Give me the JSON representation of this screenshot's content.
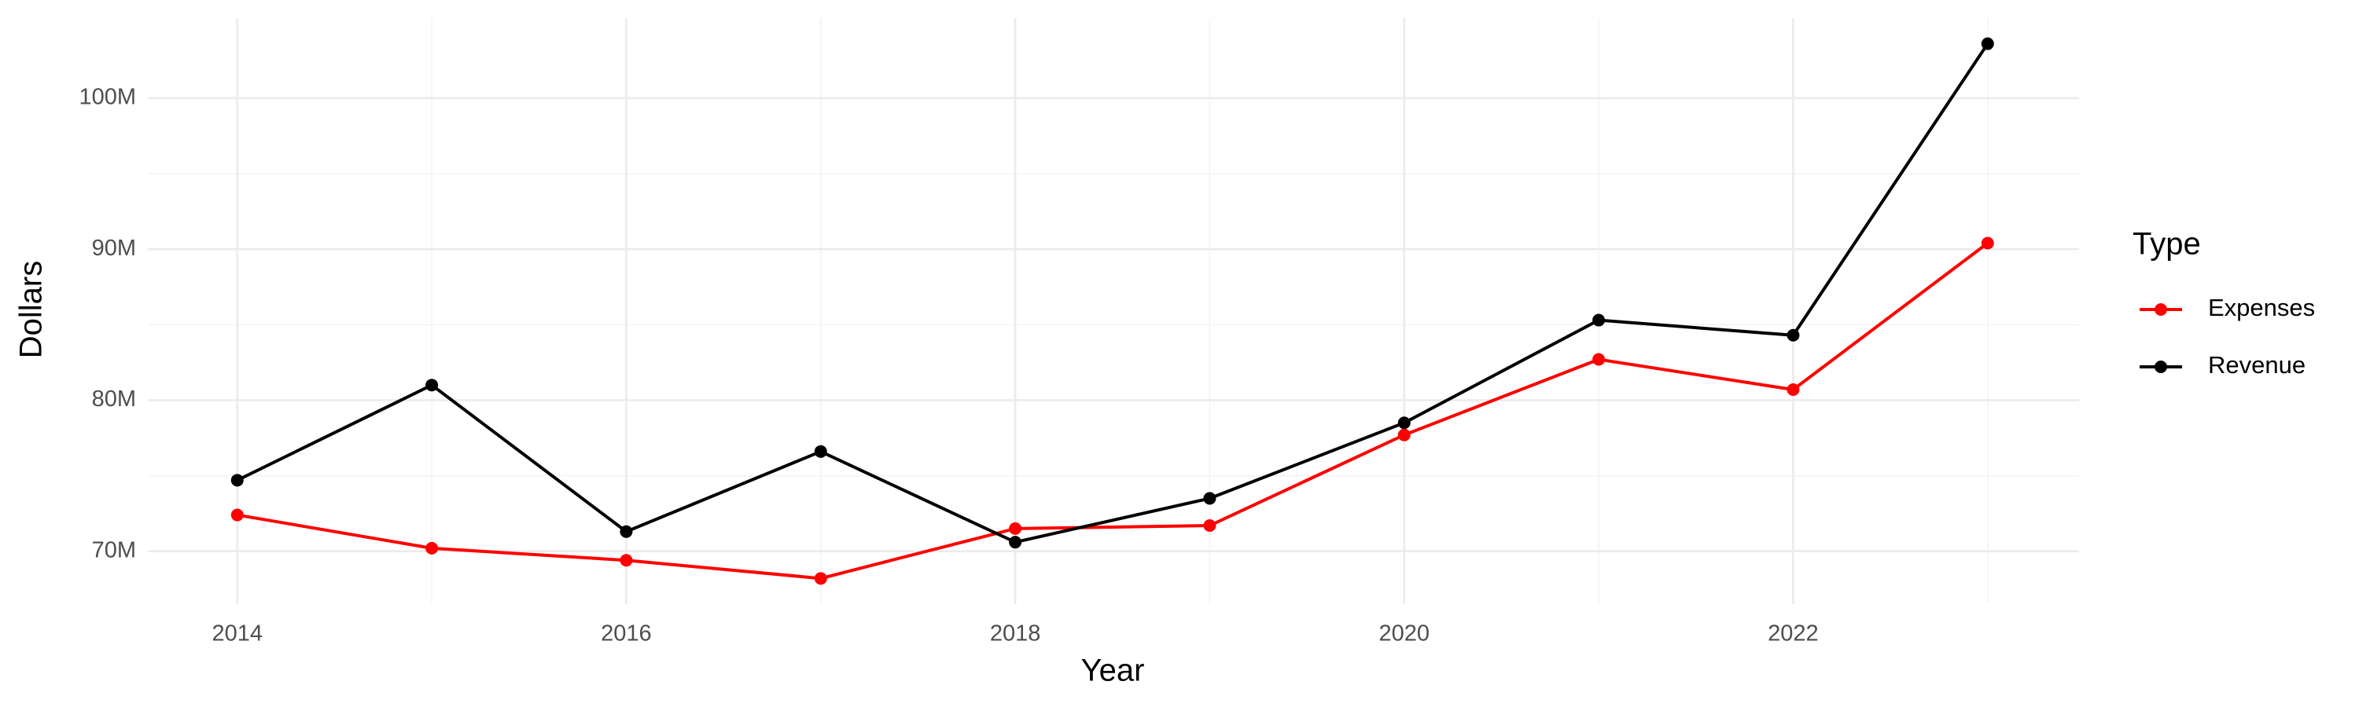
{
  "chart_data": {
    "type": "line",
    "x_label": "Year",
    "y_label": "Dollars",
    "legend_title": "Type",
    "x": [
      2014,
      2015,
      2016,
      2017,
      2018,
      2019,
      2020,
      2021,
      2022,
      2023
    ],
    "series": [
      {
        "name": "Expenses",
        "color": "#ff0000",
        "values": [
          72400000,
          70200000,
          69400000,
          68200000,
          71500000,
          71700000,
          77700000,
          82700000,
          80700000,
          90400000
        ]
      },
      {
        "name": "Revenue",
        "color": "#000000",
        "values": [
          74700000,
          81000000,
          71300000,
          76600000,
          70600000,
          73500000,
          78500000,
          85300000,
          84300000,
          103600000
        ]
      }
    ],
    "xlim": [
      2013.54,
      2023.47
    ],
    "ylim": [
      66500000,
      105300000
    ],
    "xticks": [
      2014,
      2016,
      2018,
      2020,
      2022
    ],
    "yticks": [
      {
        "value": 70000000,
        "label": "70M"
      },
      {
        "value": 80000000,
        "label": "80M"
      },
      {
        "value": 90000000,
        "label": "90M"
      },
      {
        "value": 100000000,
        "label": "100M"
      }
    ],
    "xminor_ticks": [
      2015,
      2017,
      2019,
      2021,
      2023
    ],
    "yminor_ticks": [
      75000000,
      85000000,
      95000000
    ],
    "grid": true,
    "legend_position": "right"
  }
}
